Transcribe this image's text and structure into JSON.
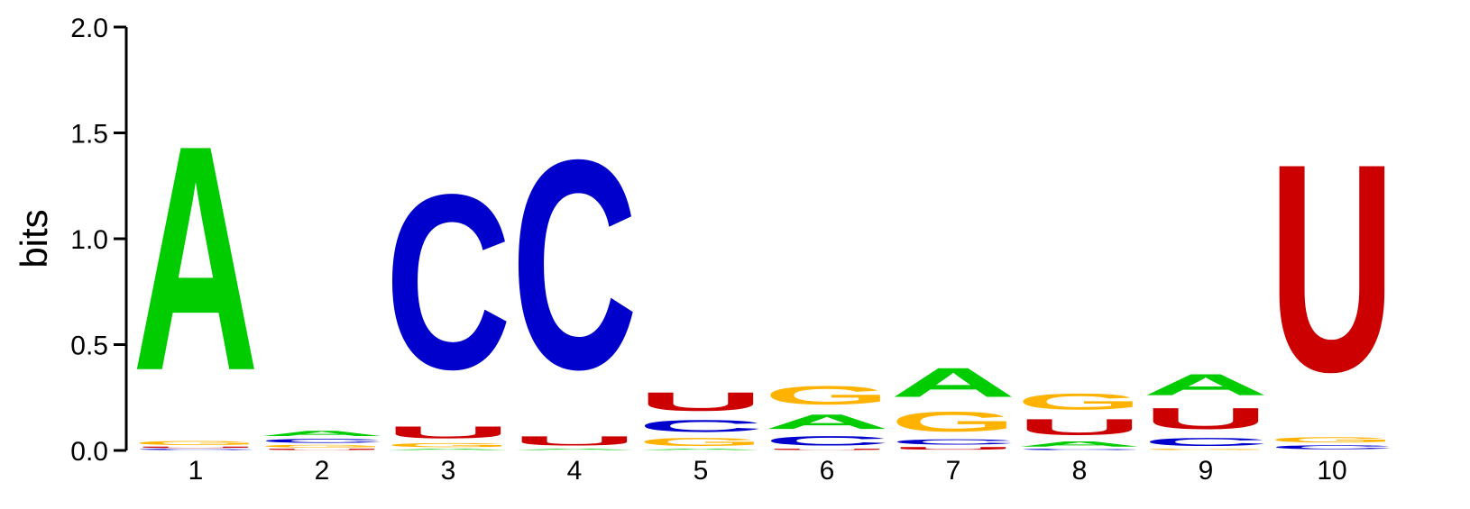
{
  "chart_data": {
    "type": "sequence-logo",
    "ylabel": "bits",
    "ylim": [
      0,
      2.0
    ],
    "yticks": [
      "0.0",
      "0.5",
      "1.0",
      "1.5",
      "2.0"
    ],
    "ytick_values": [
      0,
      0.5,
      1.0,
      1.5,
      2.0
    ],
    "xticks": [
      "1",
      "2",
      "3",
      "4",
      "5",
      "6",
      "7",
      "8",
      "9",
      "10"
    ],
    "colors": {
      "A": "#00cc00",
      "C": "#0000cc",
      "G": "#ffb300",
      "U": "#cc0000"
    },
    "positions": [
      {
        "pos": "1",
        "stack": [
          {
            "letter": "C",
            "bits": 0.01
          },
          {
            "letter": "U",
            "bits": 0.01
          },
          {
            "letter": "G",
            "bits": 0.03
          },
          {
            "letter": "A",
            "bits": 1.7
          }
        ]
      },
      {
        "pos": "2",
        "stack": [
          {
            "letter": "U",
            "bits": 0.01
          },
          {
            "letter": "G",
            "bits": 0.02
          },
          {
            "letter": "C",
            "bits": 0.03
          },
          {
            "letter": "A",
            "bits": 0.04
          }
        ]
      },
      {
        "pos": "3",
        "stack": [
          {
            "letter": "A",
            "bits": 0.01
          },
          {
            "letter": "G",
            "bits": 0.03
          },
          {
            "letter": "U",
            "bits": 0.09
          },
          {
            "letter": "C",
            "bits": 1.32
          }
        ]
      },
      {
        "pos": "4",
        "stack": [
          {
            "letter": "A",
            "bits": 0.01
          },
          {
            "letter": "U",
            "bits": 0.07
          },
          {
            "letter": "C",
            "bits": 1.58
          }
        ]
      },
      {
        "pos": "5",
        "stack": [
          {
            "letter": "A",
            "bits": 0.01
          },
          {
            "letter": "G",
            "bits": 0.06
          },
          {
            "letter": "C",
            "bits": 0.09
          },
          {
            "letter": "U",
            "bits": 0.14
          }
        ]
      },
      {
        "pos": "6",
        "stack": [
          {
            "letter": "U",
            "bits": 0.01
          },
          {
            "letter": "C",
            "bits": 0.07
          },
          {
            "letter": "A",
            "bits": 0.11
          },
          {
            "letter": "G",
            "bits": 0.14
          }
        ]
      },
      {
        "pos": "7",
        "stack": [
          {
            "letter": "U",
            "bits": 0.02
          },
          {
            "letter": "C",
            "bits": 0.04
          },
          {
            "letter": "G",
            "bits": 0.15
          },
          {
            "letter": "A",
            "bits": 0.22
          }
        ]
      },
      {
        "pos": "8",
        "stack": [
          {
            "letter": "C",
            "bits": 0.01
          },
          {
            "letter": "A",
            "bits": 0.04
          },
          {
            "letter": "U",
            "bits": 0.12
          },
          {
            "letter": "G",
            "bits": 0.12
          }
        ]
      },
      {
        "pos": "9",
        "stack": [
          {
            "letter": "G",
            "bits": 0.01
          },
          {
            "letter": "C",
            "bits": 0.06
          },
          {
            "letter": "U",
            "bits": 0.16
          },
          {
            "letter": "A",
            "bits": 0.16
          }
        ]
      },
      {
        "pos": "10",
        "stack": [
          {
            "letter": "C",
            "bits": 0.03
          },
          {
            "letter": "G",
            "bits": 0.04
          },
          {
            "letter": "U",
            "bits": 1.57
          }
        ]
      }
    ]
  }
}
